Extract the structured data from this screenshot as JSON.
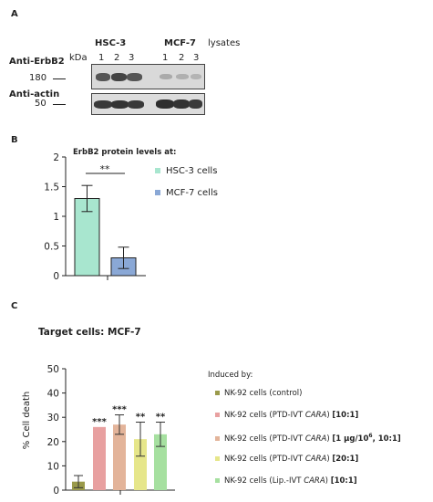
{
  "panel_a": {
    "letter": "A",
    "group1": "HSC-3",
    "group2": "MCF-7",
    "lysates": "lysates",
    "kda": "kDa",
    "lanes_g1": [
      "1",
      "2",
      "3"
    ],
    "lanes_g2": [
      "1",
      "2",
      "3"
    ],
    "row1_label": "Anti-ErbB2",
    "row1_marker": "180",
    "row2_label": "Anti-actin",
    "row2_marker": "50"
  },
  "panel_b": {
    "letter": "B",
    "title": "ErbB2 protein levels at:",
    "significance": "**",
    "legend": [
      {
        "label": "HSC-3 cells",
        "color": "#a8e6cf"
      },
      {
        "label": "MCF-7 cells",
        "color": "#8aa8d6"
      }
    ]
  },
  "panel_c": {
    "letter": "C",
    "title": "Target cells: MCF-7",
    "ylabel": "% Cell death",
    "legend_title": "Induced by:",
    "legend": [
      {
        "parts": [
          "NK-92 cells (control)"
        ],
        "color": "#9a9a4a"
      },
      {
        "parts": [
          "NK-92 cells (PTD-IVT ",
          "CARA",
          ") ",
          "[10:1]"
        ],
        "color": "#e8a0a0"
      },
      {
        "parts": [
          "NK-92 cells (PTD-IVT ",
          "CARA",
          ") ",
          "[1 µg/10",
          "6",
          ", 10:1]"
        ],
        "color": "#e3b49a"
      },
      {
        "parts": [
          "NK-92 cells (PTD-IVT ",
          "CARA",
          ") ",
          "[20:1]"
        ],
        "color": "#e6e68a"
      },
      {
        "parts": [
          "NK-92 cells (Lip.-IVT ",
          "CARA",
          ") ",
          "[10:1]"
        ],
        "color": "#a6e0a0"
      }
    ]
  },
  "chart_data": [
    {
      "type": "bar",
      "title": "ErbB2 protein levels at:",
      "categories": [
        "HSC-3 cells",
        "MCF-7 cells"
      ],
      "values": [
        1.3,
        0.3
      ],
      "errors": [
        0.22,
        0.18
      ],
      "colors": [
        "#a8e6cf",
        "#8aa8d6"
      ],
      "ylim": [
        0,
        2
      ],
      "yticks": [
        "0",
        "0.5",
        "1",
        "1.5",
        "2"
      ],
      "annotations": [
        "**"
      ]
    },
    {
      "type": "bar",
      "title": "Target cells: MCF-7",
      "ylabel": "% Cell death",
      "categories": [
        "NK-92 cells (control)",
        "NK-92 cells (PTD-IVT CARA) [10:1]",
        "NK-92 cells (PTD-IVT CARA) [1 µg/10^6, 10:1]",
        "NK-92 cells (PTD-IVT CARA) [20:1]",
        "NK-92 cells (Lip.-IVT CARA) [10:1]"
      ],
      "values": [
        3.5,
        26,
        27,
        21,
        23
      ],
      "errors": [
        2.5,
        0,
        4,
        7,
        5
      ],
      "colors": [
        "#9a9a4a",
        "#e8a0a0",
        "#e3b49a",
        "#e6e68a",
        "#a6e0a0"
      ],
      "labels": [
        "",
        "***",
        "***",
        "**",
        "**"
      ],
      "ylim": [
        0,
        50
      ],
      "yticks": [
        "0",
        "10",
        "20",
        "30",
        "40",
        "50"
      ]
    }
  ]
}
